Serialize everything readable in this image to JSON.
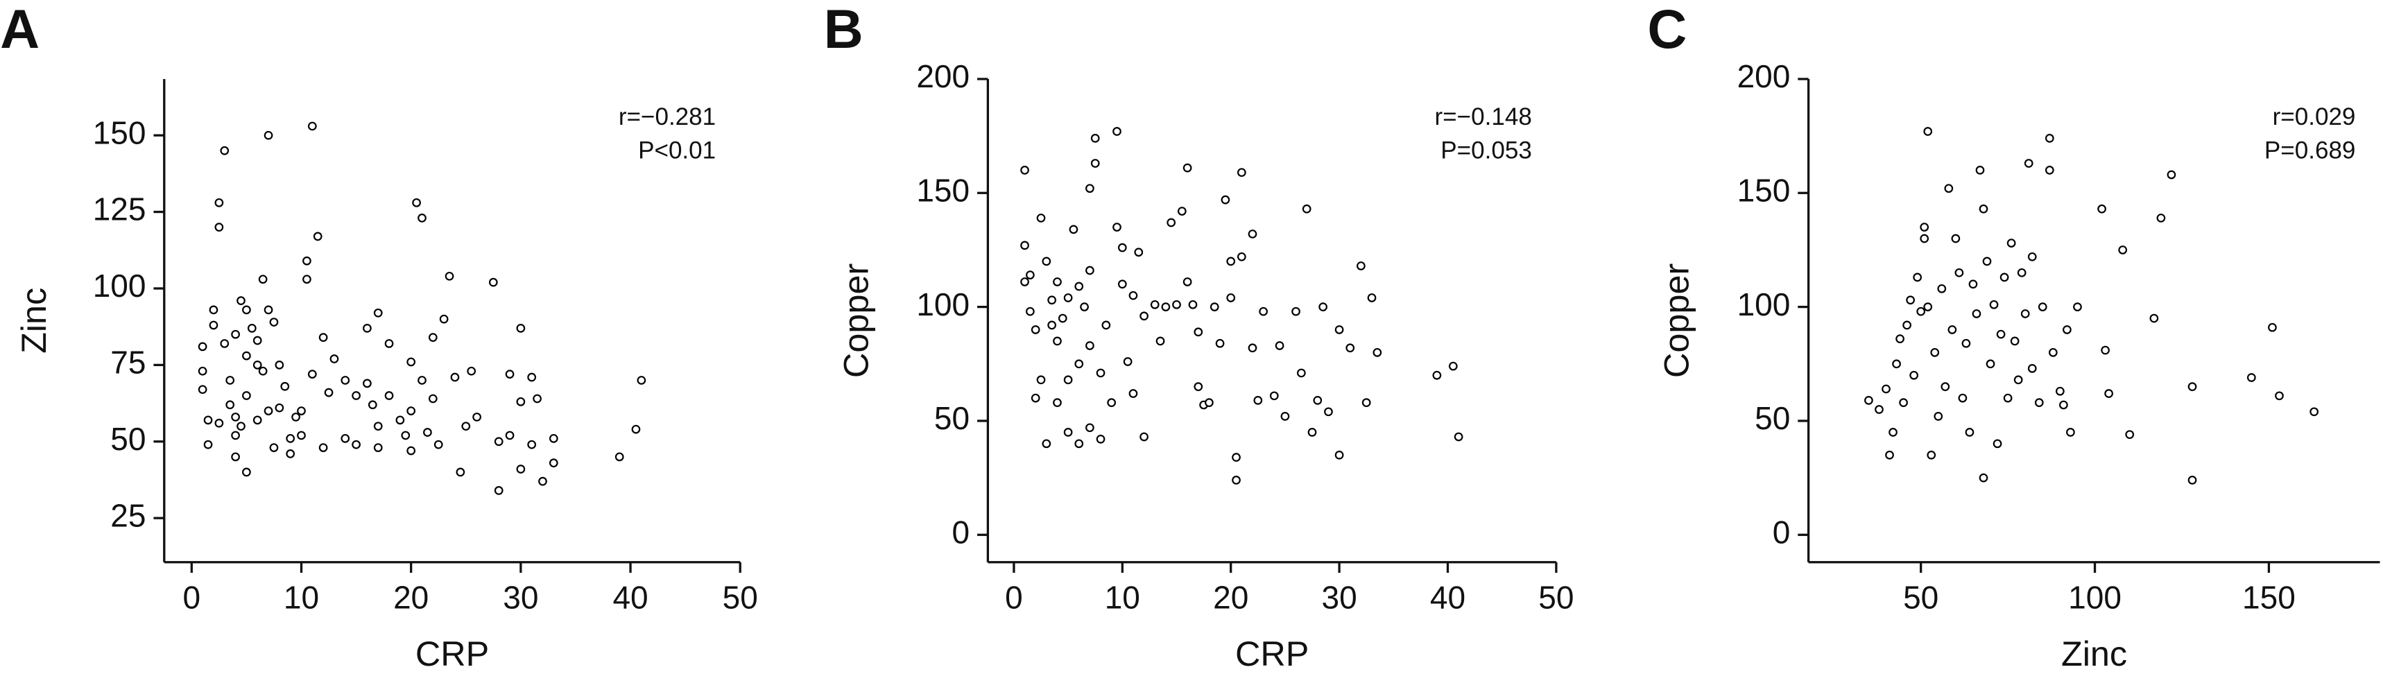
{
  "chart_data": [
    {
      "type": "scatter",
      "panel_label": "A",
      "xlabel": "CRP",
      "ylabel": "Zinc",
      "color": "#000000",
      "annotations": [
        "r=−0.281",
        "P<0.01"
      ],
      "xlim": [
        -2.5,
        50
      ],
      "ylim": [
        10.6,
        168.4
      ],
      "xticks": [
        0,
        10,
        20,
        30,
        40,
        50
      ],
      "yticks": [
        25,
        50,
        75,
        100,
        125,
        150
      ],
      "x": [
        1,
        1,
        1,
        1.5,
        1.5,
        2,
        2,
        2.5,
        2.5,
        3,
        2.5,
        3,
        3.5,
        3.5,
        4,
        4,
        4,
        4,
        4.5,
        4.5,
        5,
        5,
        5,
        5,
        5.5,
        6,
        6,
        6,
        6.5,
        6.5,
        7,
        7,
        7,
        7.5,
        7.5,
        8,
        8,
        8.5,
        9,
        9,
        9.5,
        10,
        10,
        10.5,
        10.5,
        11,
        11,
        11.5,
        12,
        12,
        12.5,
        13,
        14,
        14,
        15,
        15,
        16,
        16,
        16.5,
        17,
        17,
        17,
        18,
        18,
        19,
        19.5,
        20,
        20,
        20,
        20.5,
        21,
        21,
        21.5,
        22,
        22,
        22.5,
        23,
        23.5,
        24,
        24.5,
        25,
        25.5,
        26,
        27.5,
        28,
        28,
        29,
        29,
        30,
        30,
        30,
        31,
        31,
        31.5,
        32,
        33,
        33,
        39,
        40.5,
        41
      ],
      "values": [
        81,
        73,
        67,
        49,
        57,
        88,
        93,
        120,
        128,
        145,
        56,
        82,
        70,
        62,
        85,
        58,
        52,
        45,
        96,
        55,
        93,
        78,
        65,
        40,
        87,
        83,
        75,
        57,
        73,
        103,
        150,
        93,
        60,
        89,
        48,
        75,
        61,
        68,
        51,
        46,
        58,
        60,
        52,
        109,
        103,
        153,
        72,
        117,
        84,
        48,
        66,
        77,
        70,
        51,
        65,
        49,
        87,
        69,
        62,
        92,
        55,
        48,
        82,
        65,
        57,
        52,
        76,
        60,
        47,
        128,
        123,
        70,
        53,
        84,
        64,
        49,
        90,
        104,
        71,
        40,
        55,
        73,
        58,
        102,
        50,
        34,
        72,
        52,
        87,
        63,
        41,
        71,
        49,
        64,
        37,
        51,
        43,
        45,
        54,
        70
      ]
    },
    {
      "type": "scatter",
      "panel_label": "B",
      "xlabel": "CRP",
      "ylabel": "Copper",
      "color": "#000000",
      "annotations": [
        "r=−0.148",
        "P=0.053"
      ],
      "xlim": [
        -2.4,
        50
      ],
      "ylim": [
        -12,
        200
      ],
      "xticks": [
        0,
        10,
        20,
        30,
        40,
        50
      ],
      "yticks": [
        0,
        50,
        100,
        150,
        200
      ],
      "x": [
        1,
        1,
        1,
        1.5,
        1.5,
        2,
        2,
        2.5,
        2.5,
        3,
        3,
        3.5,
        3.5,
        4,
        4,
        4,
        4.5,
        5,
        5,
        5,
        5.5,
        6,
        6,
        6,
        6.5,
        7,
        7,
        7,
        7,
        7.5,
        7.5,
        8,
        8,
        8.5,
        9,
        9.5,
        9.5,
        10,
        10,
        10.5,
        11,
        11,
        11.5,
        12,
        12,
        13,
        13.5,
        14,
        14.5,
        15,
        15.5,
        16,
        16,
        16.5,
        17,
        17,
        17.5,
        18,
        18.5,
        19,
        19.5,
        20,
        20,
        20.5,
        20.5,
        21,
        21,
        22,
        22,
        22.5,
        23,
        24,
        24.5,
        25,
        26,
        26.5,
        27,
        27.5,
        28,
        28.5,
        29,
        30,
        30,
        31,
        32,
        32.5,
        33,
        33.5,
        39,
        40.5,
        41
      ],
      "values": [
        160,
        127,
        111,
        114,
        98,
        90,
        60,
        139,
        68,
        120,
        40,
        103,
        92,
        111,
        85,
        58,
        95,
        104,
        68,
        45,
        134,
        109,
        75,
        40,
        100,
        152,
        116,
        83,
        47,
        174,
        163,
        71,
        42,
        92,
        58,
        135,
        177,
        110,
        126,
        76,
        105,
        62,
        124,
        96,
        43,
        101,
        85,
        100,
        137,
        101,
        142,
        161,
        111,
        101,
        89,
        65,
        57,
        58,
        100,
        84,
        147,
        120,
        104,
        34,
        24,
        159,
        122,
        132,
        82,
        59,
        98,
        61,
        83,
        52,
        98,
        71,
        143,
        45,
        59,
        100,
        54,
        35,
        90,
        82,
        118,
        58,
        104,
        80,
        70,
        74,
        43
      ]
    },
    {
      "type": "scatter",
      "panel_label": "C",
      "xlabel": "Zinc",
      "ylabel": "Copper",
      "color": "#000000",
      "annotations": [
        "r=0.029",
        "P=0.689"
      ],
      "xlim": [
        17.7,
        181.9
      ],
      "ylim": [
        -12,
        200
      ],
      "xticks": [
        50,
        100,
        150
      ],
      "yticks": [
        0,
        50,
        100,
        150,
        200
      ],
      "x": [
        35,
        38,
        40,
        41,
        42,
        43,
        44,
        45,
        46,
        47,
        48,
        49,
        50,
        51,
        51,
        52,
        52,
        53,
        54,
        55,
        56,
        57,
        58,
        59,
        60,
        61,
        62,
        63,
        64,
        65,
        66,
        67,
        68,
        68,
        69,
        70,
        71,
        72,
        73,
        74,
        75,
        76,
        77,
        78,
        79,
        80,
        81,
        82,
        82,
        84,
        85,
        87,
        87,
        88,
        90,
        91,
        92,
        93,
        95,
        102,
        103,
        104,
        108,
        110,
        117,
        119,
        122,
        128,
        128,
        145,
        151,
        153,
        163
      ],
      "values": [
        59,
        55,
        64,
        35,
        45,
        75,
        86,
        58,
        92,
        103,
        70,
        113,
        98,
        135,
        130,
        177,
        100,
        35,
        80,
        52,
        108,
        65,
        152,
        90,
        130,
        115,
        60,
        84,
        45,
        110,
        97,
        160,
        143,
        25,
        120,
        75,
        101,
        40,
        88,
        113,
        60,
        128,
        85,
        68,
        115,
        97,
        163,
        122,
        73,
        58,
        100,
        174,
        160,
        80,
        63,
        57,
        90,
        45,
        100,
        143,
        81,
        62,
        125,
        44,
        95,
        139,
        158,
        65,
        24,
        69,
        91,
        61,
        54
      ]
    }
  ]
}
